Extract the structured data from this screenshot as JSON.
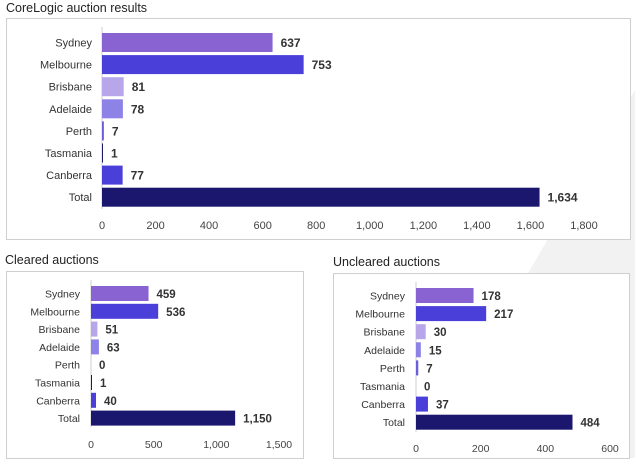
{
  "chart_data": [
    {
      "type": "bar",
      "orientation": "horizontal",
      "title": "CoreLogic auction results",
      "categories": [
        "Sydney",
        "Melbourne",
        "Brisbane",
        "Adelaide",
        "Perth",
        "Tasmania",
        "Canberra",
        "Total"
      ],
      "values": [
        637,
        753,
        81,
        78,
        7,
        1,
        77,
        1634
      ],
      "value_labels": [
        "637",
        "753",
        "81",
        "78",
        "7",
        "1",
        "77",
        "1,634"
      ],
      "xlim": [
        0,
        1800
      ],
      "ticks": [
        0,
        200,
        400,
        600,
        800,
        1000,
        1200,
        1400,
        1600,
        1800
      ],
      "tick_labels": [
        "0",
        "200",
        "400",
        "600",
        "800",
        "1,000",
        "1,200",
        "1,400",
        "1,600",
        "1,800"
      ],
      "grid": false
    },
    {
      "type": "bar",
      "orientation": "horizontal",
      "title": "Cleared auctions",
      "categories": [
        "Sydney",
        "Melbourne",
        "Brisbane",
        "Adelaide",
        "Perth",
        "Tasmania",
        "Canberra",
        "Total"
      ],
      "values": [
        459,
        536,
        51,
        63,
        0,
        1,
        40,
        1150
      ],
      "value_labels": [
        "459",
        "536",
        "51",
        "63",
        "0",
        "1",
        "40",
        "1,150"
      ],
      "xlim": [
        0,
        1500
      ],
      "ticks": [
        0,
        500,
        1000,
        1500
      ],
      "tick_labels": [
        "0",
        "500",
        "1,000",
        "1,500"
      ],
      "grid": false
    },
    {
      "type": "bar",
      "orientation": "horizontal",
      "title": "Uncleared auctions",
      "categories": [
        "Sydney",
        "Melbourne",
        "Brisbane",
        "Adelaide",
        "Perth",
        "Tasmania",
        "Canberra",
        "Total"
      ],
      "values": [
        178,
        217,
        30,
        15,
        7,
        0,
        37,
        484
      ],
      "value_labels": [
        "178",
        "217",
        "30",
        "15",
        "7",
        "0",
        "37",
        "484"
      ],
      "xlim": [
        0,
        600
      ],
      "ticks": [
        0,
        200,
        400,
        600
      ],
      "tick_labels": [
        "0",
        "200",
        "400",
        "600"
      ],
      "grid": false
    }
  ],
  "colors": {
    "Sydney": "#8A63D2",
    "Melbourne": "#4B3FD9",
    "Brisbane": "#B7A6EA",
    "Adelaide": "#8D83E6",
    "Perth": "#6A5FD8",
    "Tasmania": "#1E1A66",
    "Canberra": "#4B3FD9",
    "Total": "#1B176E"
  }
}
